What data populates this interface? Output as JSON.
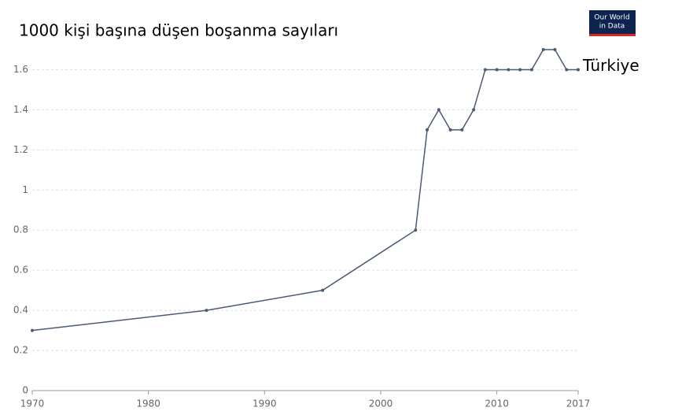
{
  "chart_data": {
    "type": "line",
    "title": "1000 kişi başına düşen boşanma sayıları",
    "logo": [
      "Our World",
      "in Data"
    ],
    "x": [
      1970,
      1985,
      1995,
      2003,
      2004,
      2005,
      2006,
      2007,
      2008,
      2009,
      2010,
      2011,
      2012,
      2013,
      2014,
      2015,
      2016,
      2017
    ],
    "series": [
      {
        "name": "Türkiye",
        "color": "#4c5a72",
        "values": [
          0.3,
          0.4,
          0.5,
          0.8,
          1.3,
          1.4,
          1.3,
          1.3,
          1.4,
          1.6,
          1.6,
          1.6,
          1.6,
          1.6,
          1.7,
          1.7,
          1.6,
          1.6
        ]
      }
    ],
    "xlim": [
      1970,
      2017
    ],
    "xticks": [
      1970,
      1980,
      1990,
      2000,
      2010,
      2017
    ],
    "ylim": [
      0,
      1.7
    ],
    "yticks": [
      0,
      0.2,
      0.4,
      0.6,
      0.8,
      1,
      1.2,
      1.4,
      1.6
    ],
    "grid": true
  }
}
